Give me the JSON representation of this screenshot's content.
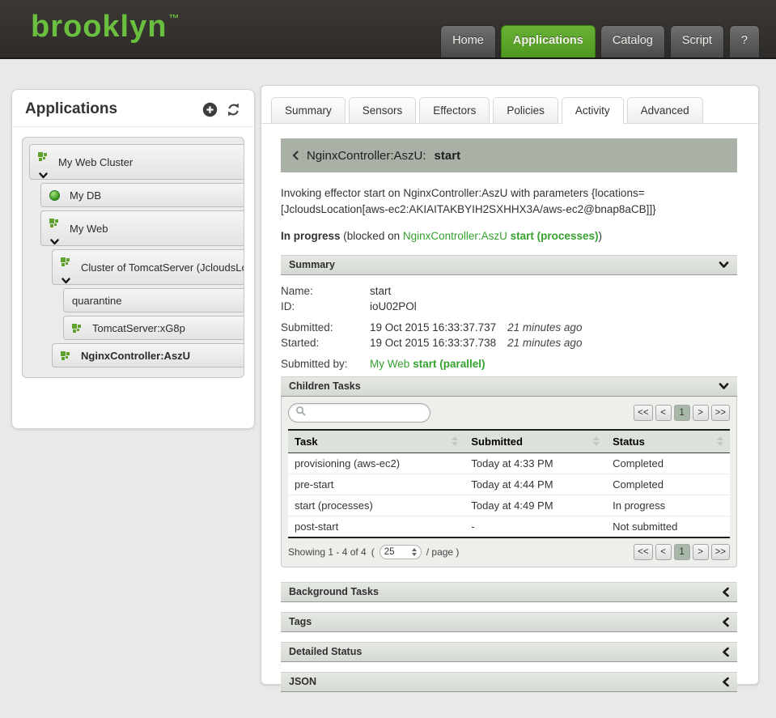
{
  "header": {
    "logo_text": "brooklyn",
    "logo_tm": "™",
    "nav_items": [
      {
        "label": "Home",
        "active": false
      },
      {
        "label": "Applications",
        "active": true
      },
      {
        "label": "Catalog",
        "active": false
      },
      {
        "label": "Script",
        "active": false
      },
      {
        "label": "?",
        "active": false
      }
    ]
  },
  "colors": {
    "brand_green": "#6abf3f",
    "nav_active_green": "#53991f",
    "link_green": "#36a12f",
    "breadcrumb_bg": "#a9b0a6",
    "pagination_active_bg": "#a8b8a8"
  },
  "sidebar": {
    "title": "Applications",
    "tree": [
      {
        "label": "My Web Cluster",
        "level": 0,
        "icon": "entity",
        "expanded": true,
        "bold": false
      },
      {
        "label": "My DB",
        "level": 1,
        "icon": "orb",
        "expanded": false,
        "bold": false
      },
      {
        "label": "My Web",
        "level": 1,
        "icon": "entity",
        "expanded": true,
        "bold": false
      },
      {
        "label": "Cluster of TomcatServer (JcloudsLocat",
        "level": 2,
        "icon": "entity",
        "expanded": true,
        "bold": false
      },
      {
        "label": "quarantine",
        "level": 3,
        "icon": "none",
        "expanded": false,
        "bold": false
      },
      {
        "label": "TomcatServer:xG8p",
        "level": 3,
        "icon": "entity",
        "expanded": false,
        "bold": false
      },
      {
        "label": "NginxController:AszU",
        "level": 2,
        "icon": "entity",
        "expanded": false,
        "bold": true
      }
    ]
  },
  "tabs": {
    "items": [
      "Summary",
      "Sensors",
      "Effectors",
      "Policies",
      "Activity",
      "Advanced"
    ],
    "active": "Activity"
  },
  "activity": {
    "breadcrumb": {
      "entity": "NginxController:AszU:",
      "task": "start"
    },
    "description_lines": [
      "Invoking effector start on NginxController:AszU with parameters {locations=",
      "[JcloudsLocation[aws-ec2:AKIAITAKBYIH2SXHHX3A/aws-ec2@bnap8aCB]]}"
    ],
    "status": {
      "state": "In progress",
      "prefix": "(blocked on",
      "entity_link": "NginxController:AszU",
      "task_link": "start (processes)",
      "suffix": ")"
    }
  },
  "summary": {
    "title": "Summary",
    "fields": [
      {
        "label": "Name:",
        "value": "start",
        "note": "",
        "gap": false
      },
      {
        "label": "ID:",
        "value": "ioU02POl",
        "note": "",
        "gap": false
      },
      {
        "label": "Submitted:",
        "value": "19 Oct 2015 16:33:37.737",
        "note": "21 minutes ago",
        "gap": true
      },
      {
        "label": "Started:",
        "value": "19 Oct 2015 16:33:37.738",
        "note": "21 minutes ago",
        "gap": false
      },
      {
        "label": "Submitted by:",
        "value": "",
        "note": "",
        "link": "My Web",
        "link_bold": "start (parallel)",
        "gap": true
      }
    ]
  },
  "children_tasks": {
    "title": "Children Tasks",
    "search_value": "",
    "pagination": [
      "<<",
      "<",
      "1",
      ">",
      ">>"
    ],
    "pagination_active": "1",
    "table": {
      "columns": [
        "Task",
        "Submitted",
        "Status"
      ],
      "rows": [
        {
          "task": "provisioning (aws-ec2)",
          "submitted": "Today at 4:33 PM",
          "status": "Completed"
        },
        {
          "task": "pre-start",
          "submitted": "Today at 4:44 PM",
          "status": "Completed"
        },
        {
          "task": "start (processes)",
          "submitted": "Today at 4:49 PM",
          "status": "In progress"
        },
        {
          "task": "post-start",
          "submitted": "-",
          "status": "Not submitted"
        }
      ]
    },
    "footer": {
      "showing": "Showing 1 - 4 of 4",
      "page_open": "(",
      "page_size": "25",
      "page_suffix": "/ page )"
    }
  },
  "collapsed_sections": [
    "Background Tasks",
    "Tags",
    "Detailed Status",
    "JSON"
  ]
}
